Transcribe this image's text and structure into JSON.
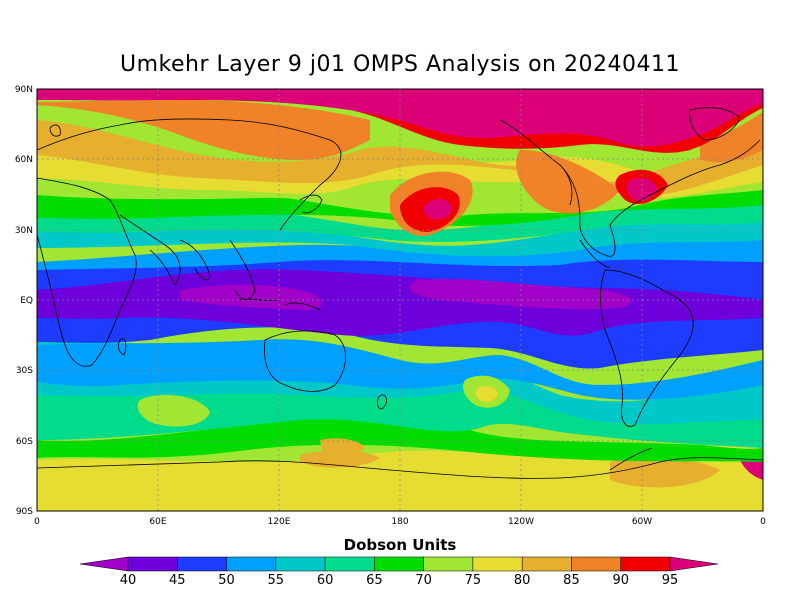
{
  "title": "Umkehr Layer 9 j01 OMPS Analysis on 20240411",
  "lat_labels": [
    "90N",
    "60N",
    "30N",
    "EQ",
    "30S",
    "60S",
    "90S"
  ],
  "lon_labels": [
    "0",
    "60E",
    "120E",
    "180",
    "120W",
    "60W",
    "0"
  ],
  "colorbar": {
    "unit_label": "Dobson Units",
    "levels": [
      "40",
      "45",
      "50",
      "55",
      "60",
      "65",
      "70",
      "75",
      "80",
      "85",
      "90",
      "95"
    ],
    "colors": [
      "#a000c8",
      "#6e00dc",
      "#1e3cff",
      "#00a0ff",
      "#00c8c8",
      "#00dc8c",
      "#00dc00",
      "#a0e632",
      "#e6dc32",
      "#e6af2d",
      "#f08228",
      "#f00000",
      "#dc0078"
    ]
  },
  "chart_data": {
    "type": "heatmap",
    "title": "Umkehr Layer 9 j01 OMPS Analysis on 20240411",
    "unit": "Dobson Units",
    "levels": [
      40,
      45,
      50,
      55,
      60,
      65,
      70,
      75,
      80,
      85,
      90,
      95
    ],
    "lon_range": [
      0,
      360
    ],
    "lat_range": [
      -90,
      90
    ]
  }
}
